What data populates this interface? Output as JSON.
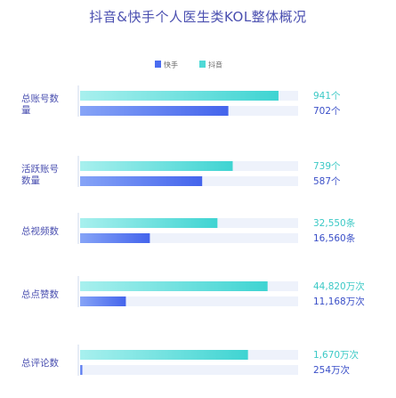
{
  "chart_data": {
    "type": "bar",
    "orientation": "horizontal",
    "title": "抖音&快手个人医生类KOL整体概况",
    "legend": {
      "position": "top-center",
      "entries": [
        {
          "name": "快手",
          "color": "#4a6cf0"
        },
        {
          "name": "抖音",
          "color": "#4fd9d6"
        }
      ]
    },
    "categories": [
      "总账号数量",
      "活跃账号数量",
      "总视频数",
      "总点赞数",
      "总评论数"
    ],
    "category_lines": [
      [
        "总账号数",
        "量"
      ],
      [
        "活跃账号",
        "数量"
      ],
      [
        "总视频数"
      ],
      [
        "总点赞数"
      ],
      [
        "总评论数"
      ]
    ],
    "series": [
      {
        "name": "抖音",
        "color": "#4fd9d6",
        "values": [
          941,
          739,
          32550,
          44820,
          1670
        ],
        "labels": [
          "941个",
          "739个",
          "32,550条",
          "44,820万次",
          "1,670万次"
        ],
        "fill_ratio": [
          0.91,
          0.7,
          0.63,
          0.86,
          0.77
        ]
      },
      {
        "name": "快手",
        "color": "#4a6cf0",
        "values": [
          702,
          587,
          16560,
          11168,
          254
        ],
        "labels": [
          "702个",
          "587个",
          "16,560条",
          "11,168万次",
          "254万次"
        ],
        "fill_ratio": [
          0.68,
          0.56,
          0.32,
          0.21,
          0.01
        ]
      }
    ],
    "grid": false
  }
}
